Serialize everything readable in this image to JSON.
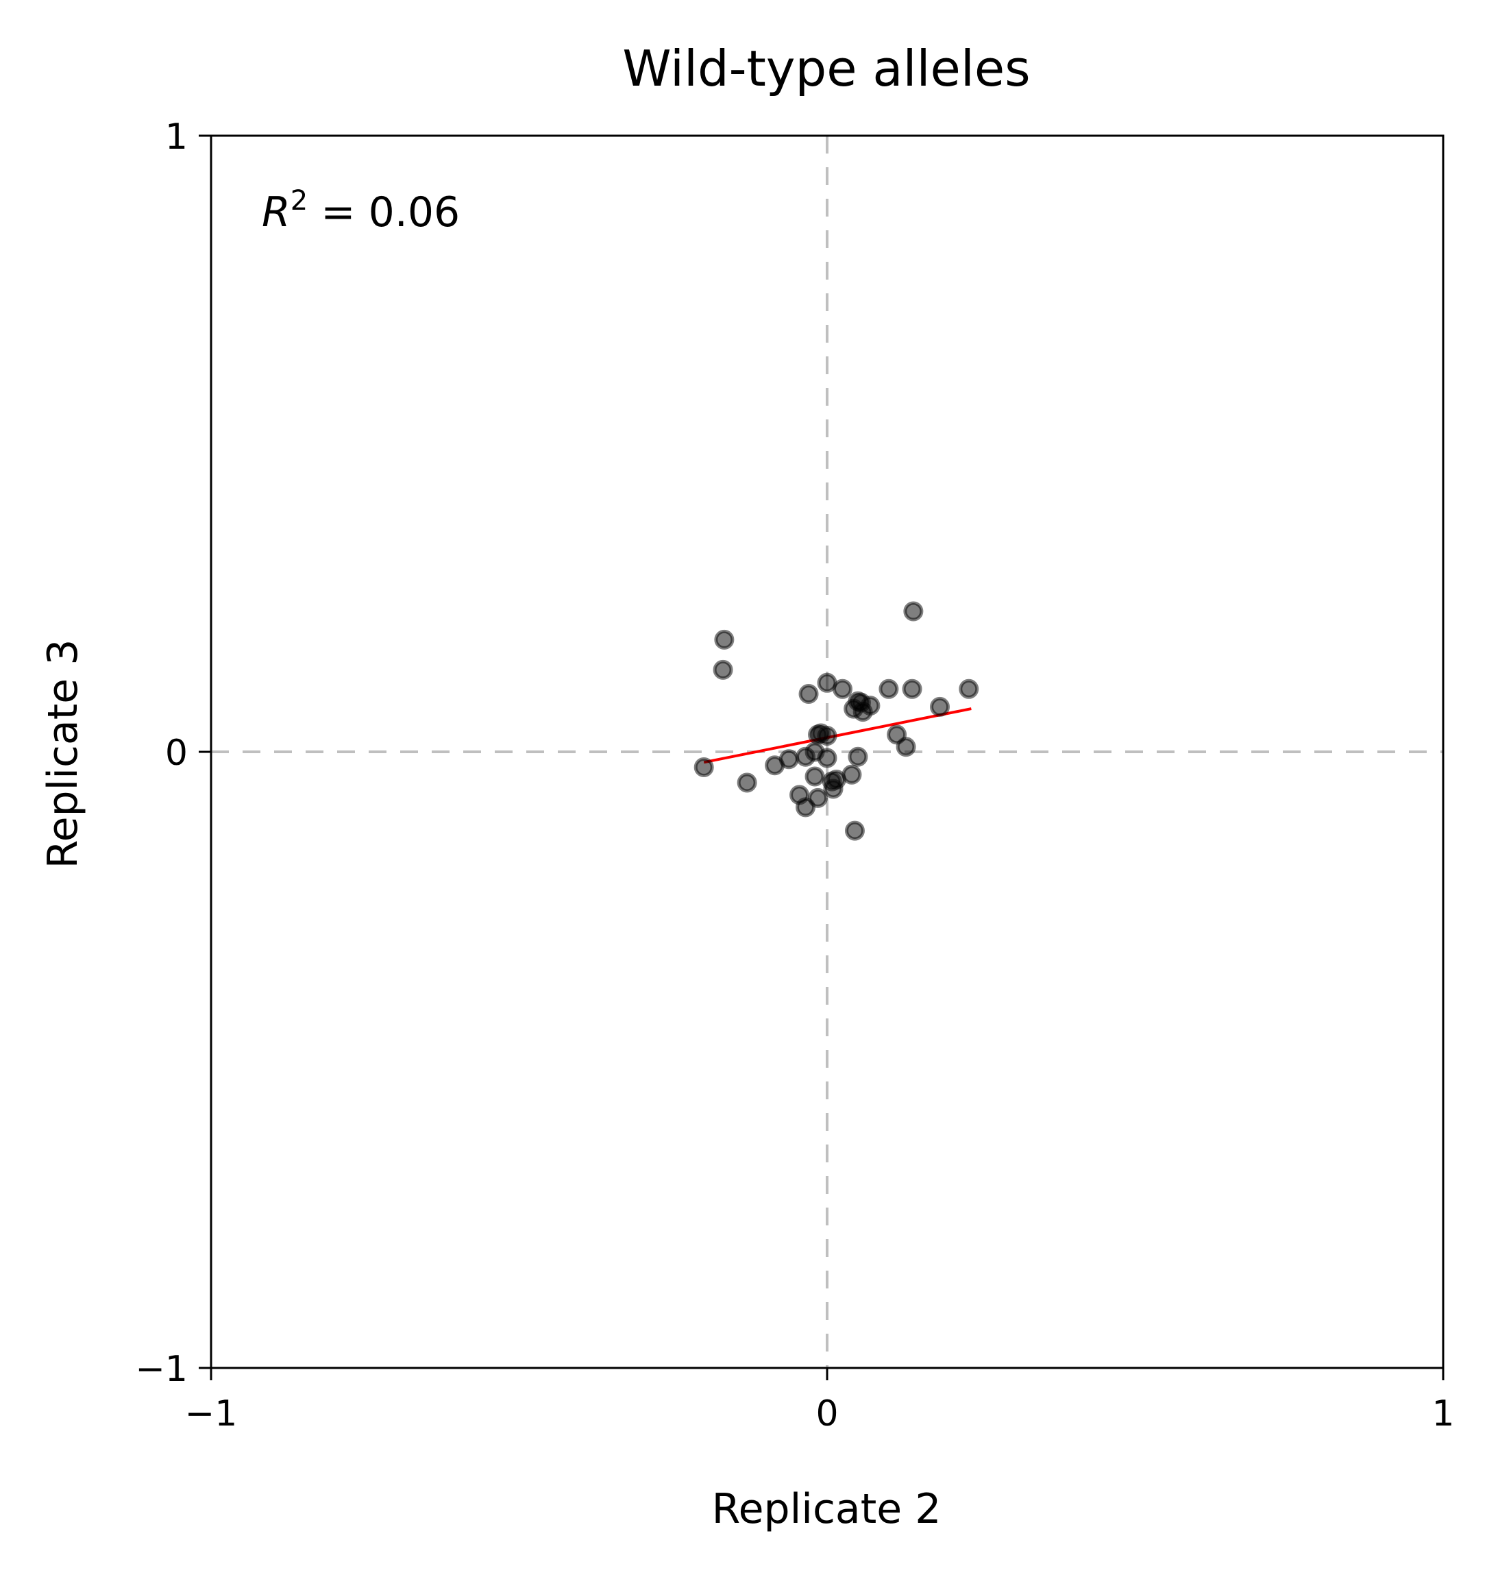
{
  "chart_data": {
    "type": "scatter",
    "title": "Wild-type alleles",
    "xlabel": "Replicate 2",
    "ylabel": "Replicate 3",
    "xlim": [
      -1,
      1
    ],
    "ylim": [
      -1,
      1
    ],
    "xticks": [
      -1,
      0,
      1
    ],
    "yticks": [
      -1,
      0,
      1
    ],
    "xtick_labels": [
      "−1",
      "0",
      "1"
    ],
    "ytick_labels": [
      "−1",
      "0",
      "1"
    ],
    "reference_lines": {
      "x": 0,
      "y": 0,
      "style": "dashed",
      "color": "#bfbfbf"
    },
    "annotation": {
      "label": "R",
      "superscript": "2",
      "text": " = 0.06"
    },
    "points": {
      "color": "#000000",
      "opacity": 0.5,
      "x": [
        0.14,
        -0.167,
        -0.169,
        0.0,
        0.025,
        0.1,
        0.138,
        0.23,
        -0.03,
        0.05,
        0.055,
        0.07,
        0.043,
        0.058,
        0.183,
        -0.01,
        -0.015,
        0.0,
        0.113,
        0.128,
        -0.2,
        -0.13,
        -0.085,
        -0.062,
        -0.035,
        -0.02,
        0.05,
        0.0,
        -0.02,
        0.015,
        0.04,
        0.01,
        -0.045,
        -0.035,
        -0.015,
        0.008,
        0.045
      ],
      "y": [
        0.228,
        0.182,
        0.133,
        0.112,
        0.102,
        0.102,
        0.102,
        0.102,
        0.094,
        0.082,
        0.08,
        0.075,
        0.07,
        0.065,
        0.073,
        0.03,
        0.028,
        0.026,
        0.028,
        0.008,
        -0.025,
        -0.05,
        -0.022,
        -0.012,
        -0.008,
        0.0,
        -0.008,
        -0.01,
        -0.04,
        -0.045,
        -0.037,
        -0.06,
        -0.07,
        -0.09,
        -0.075,
        -0.048,
        -0.128
      ]
    },
    "fit_line": {
      "color": "#ff0000",
      "x": [
        -0.2,
        0.234
      ],
      "y": [
        -0.017,
        0.07
      ]
    }
  }
}
